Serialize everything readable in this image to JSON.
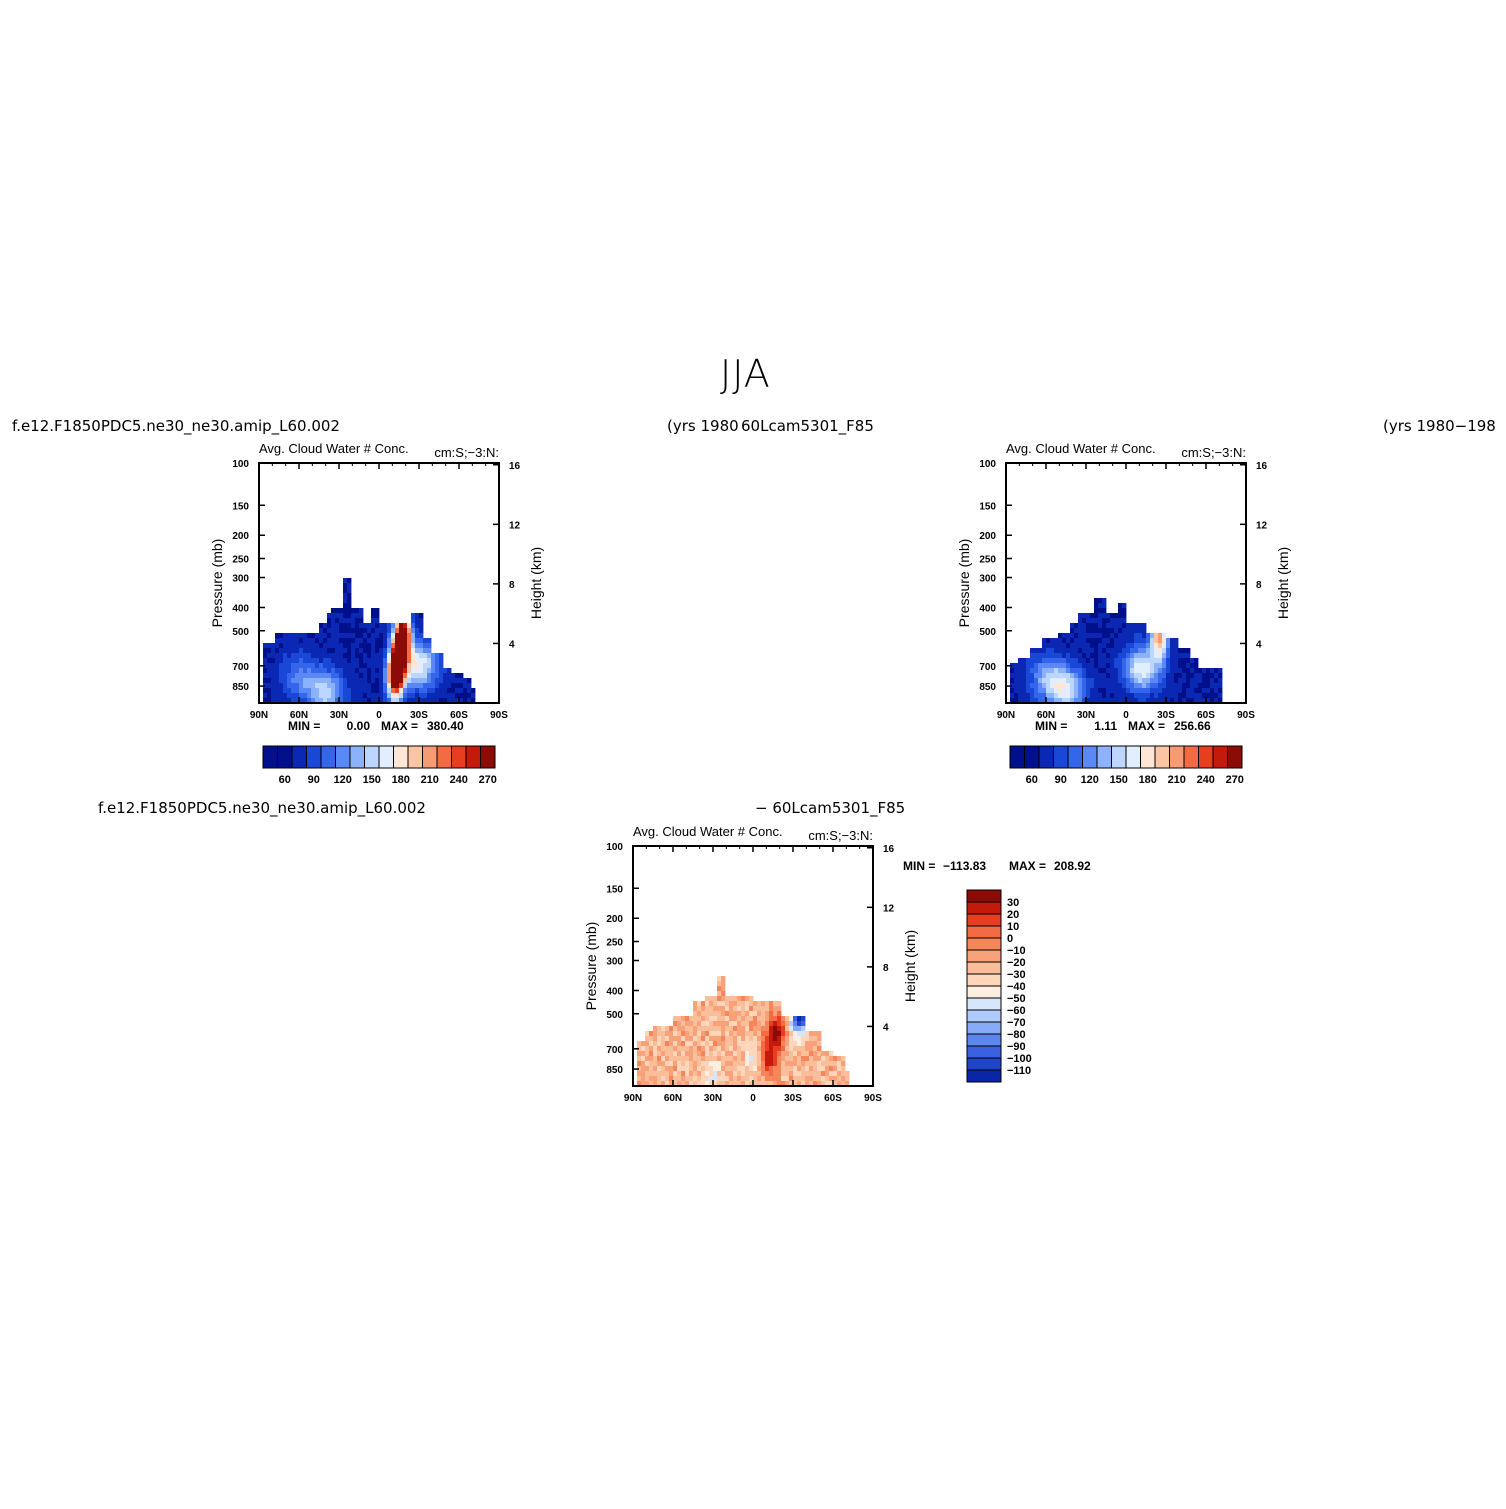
{
  "page": {
    "title": "JJA",
    "labels": {
      "top_left_case": "f.e12.F1850PDC5.ne30_ne30.amip_L60.002",
      "top_left_years": "(yrs 1980",
      "top_right_case": "60Lcam5301_F85",
      "top_right_years": "(yrs 1980−198",
      "bottom_case": "f.e12.F1850PDC5.ne30_ne30.amip_L60.002",
      "bottom_diff": "− 60Lcam5301_F85"
    }
  },
  "chart_data": [
    {
      "type": "heatmap",
      "panel": "top-left",
      "left_title": "Avg. Cloud Water # Conc.",
      "right_title": "cm:S;−3:N:",
      "ylabel": "Pressure (mb)",
      "ylabel_right": "Height (km)",
      "yticks": [
        "100",
        "150",
        "200",
        "250",
        "300",
        "400",
        "500",
        "700",
        "850"
      ],
      "yticks_right": [
        "16",
        "12",
        "8",
        "4"
      ],
      "xticks": [
        "90N",
        "60N",
        "30N",
        "0",
        "30S",
        "60S",
        "90S"
      ],
      "min_label": "MIN =",
      "min_value": "0.00",
      "max_label": "MAX =",
      "max_value": "380.40",
      "colorbar_labels": [
        "60",
        "90",
        "120",
        "150",
        "180",
        "210",
        "240",
        "270"
      ],
      "colorbar_orientation": "horizontal",
      "palette": "blue-white-red",
      "column_tops_mb": [
        {
          "lat": 88,
          "top": 550
        },
        {
          "lat": 80,
          "top": 550
        },
        {
          "lat": 77,
          "top": 500
        },
        {
          "lat": 70,
          "top": 500
        },
        {
          "lat": 55,
          "top": 500
        },
        {
          "lat": 45,
          "top": 470
        },
        {
          "lat": 40,
          "top": 430
        },
        {
          "lat": 35,
          "top": 400
        },
        {
          "lat": 27,
          "top": 300
        },
        {
          "lat": 20,
          "top": 400
        },
        {
          "lat": 12,
          "top": 470
        },
        {
          "lat": 5,
          "top": 400
        },
        {
          "lat": 0,
          "top": 470
        },
        {
          "lat": -10,
          "top": 470
        },
        {
          "lat": -25,
          "top": 420
        },
        {
          "lat": -32,
          "top": 540
        },
        {
          "lat": -40,
          "top": 620
        },
        {
          "lat": -48,
          "top": 700
        },
        {
          "lat": -55,
          "top": 760
        },
        {
          "lat": -62,
          "top": 800
        },
        {
          "lat": -70,
          "top": 850
        },
        {
          "lat": -72,
          "top": 1000
        }
      ],
      "features": [
        {
          "kind": "max",
          "lat": -18,
          "p": 520,
          "level": 1.0
        },
        {
          "kind": "max",
          "lat": -12,
          "p": 780,
          "level": 0.92
        },
        {
          "kind": "high",
          "lat": -15,
          "p": 650,
          "level": 0.8
        },
        {
          "kind": "low",
          "lat": -30,
          "p": 700,
          "level": 0.45
        },
        {
          "kind": "low",
          "lat": 40,
          "p": 900,
          "level": 0.35
        },
        {
          "kind": "low",
          "lat": 60,
          "p": 780,
          "level": 0.2
        }
      ]
    },
    {
      "type": "heatmap",
      "panel": "top-right",
      "left_title": "Avg. Cloud Water # Conc.",
      "right_title": "cm:S;−3:N:",
      "ylabel": "Pressure (mb)",
      "ylabel_right": "Height (km)",
      "yticks": [
        "100",
        "150",
        "200",
        "250",
        "300",
        "400",
        "500",
        "700",
        "850"
      ],
      "yticks_right": [
        "16",
        "12",
        "8",
        "4"
      ],
      "xticks": [
        "90N",
        "60N",
        "30N",
        "0",
        "30S",
        "60S",
        "90S"
      ],
      "min_label": "MIN =",
      "min_value": "1.11",
      "max_label": "MAX =",
      "max_value": "256.66",
      "colorbar_labels": [
        "60",
        "90",
        "120",
        "150",
        "180",
        "210",
        "240",
        "270"
      ],
      "colorbar_orientation": "horizontal",
      "palette": "blue-white-red",
      "column_tops_mb": [
        {
          "lat": 88,
          "top": 680
        },
        {
          "lat": 80,
          "top": 640
        },
        {
          "lat": 72,
          "top": 600
        },
        {
          "lat": 62,
          "top": 540
        },
        {
          "lat": 52,
          "top": 500
        },
        {
          "lat": 42,
          "top": 470
        },
        {
          "lat": 35,
          "top": 430
        },
        {
          "lat": 25,
          "top": 370
        },
        {
          "lat": 15,
          "top": 420
        },
        {
          "lat": 5,
          "top": 380
        },
        {
          "lat": 0,
          "top": 470
        },
        {
          "lat": -15,
          "top": 500
        },
        {
          "lat": -30,
          "top": 540
        },
        {
          "lat": -40,
          "top": 600
        },
        {
          "lat": -48,
          "top": 650
        },
        {
          "lat": -55,
          "top": 730
        },
        {
          "lat": -72,
          "top": 1000
        }
      ],
      "features": [
        {
          "kind": "high",
          "lat": -25,
          "p": 520,
          "level": 0.65
        },
        {
          "kind": "low",
          "lat": -12,
          "p": 720,
          "level": 0.45
        },
        {
          "kind": "low",
          "lat": 45,
          "p": 880,
          "level": 0.4
        },
        {
          "kind": "low",
          "lat": 60,
          "p": 780,
          "level": 0.25
        }
      ]
    },
    {
      "type": "heatmap",
      "panel": "bottom-diff",
      "left_title": "Avg. Cloud Water # Conc.",
      "right_title": "cm:S;−3:N:",
      "ylabel": "Pressure (mb)",
      "ylabel_right": "Height (km)",
      "yticks": [
        "100",
        "150",
        "200",
        "250",
        "300",
        "400",
        "500",
        "700",
        "850"
      ],
      "yticks_right": [
        "16",
        "12",
        "8",
        "4"
      ],
      "xticks": [
        "90N",
        "60N",
        "30N",
        "0",
        "30S",
        "60S",
        "90S"
      ],
      "min_label": "MIN =",
      "min_value": "−113.83",
      "max_label": "MAX =",
      "max_value": "208.92",
      "colorbar_labels": [
        "30",
        "20",
        "10",
        "0",
        "−10",
        "−20",
        "−30",
        "−40",
        "−50",
        "−60",
        "−70",
        "−80",
        "−90",
        "−100",
        "−110"
      ],
      "colorbar_orientation": "vertical",
      "palette": "diff",
      "column_tops_mb": [
        {
          "lat": 88,
          "top": 650
        },
        {
          "lat": 82,
          "top": 600
        },
        {
          "lat": 76,
          "top": 560
        },
        {
          "lat": 60,
          "top": 500
        },
        {
          "lat": 45,
          "top": 450
        },
        {
          "lat": 35,
          "top": 420
        },
        {
          "lat": 28,
          "top": 350
        },
        {
          "lat": 20,
          "top": 420
        },
        {
          "lat": 10,
          "top": 420
        },
        {
          "lat": 0,
          "top": 450
        },
        {
          "lat": -20,
          "top": 500
        },
        {
          "lat": -28,
          "top": 520
        },
        {
          "lat": -40,
          "top": 600
        },
        {
          "lat": -50,
          "top": 700
        },
        {
          "lat": -60,
          "top": 760
        },
        {
          "lat": -68,
          "top": 850
        },
        {
          "lat": -72,
          "top": 1000
        }
      ],
      "features": [
        {
          "kind": "max",
          "lat": -17,
          "p": 600,
          "level": 1.0
        },
        {
          "kind": "max",
          "lat": -12,
          "p": 760,
          "level": 0.95
        },
        {
          "kind": "neg",
          "lat": -35,
          "p": 520,
          "level": 0.3
        },
        {
          "kind": "light",
          "lat": 30,
          "p": 900,
          "level": 0.2
        },
        {
          "kind": "light",
          "lat": 0,
          "p": 780,
          "level": 0.2
        }
      ]
    }
  ]
}
